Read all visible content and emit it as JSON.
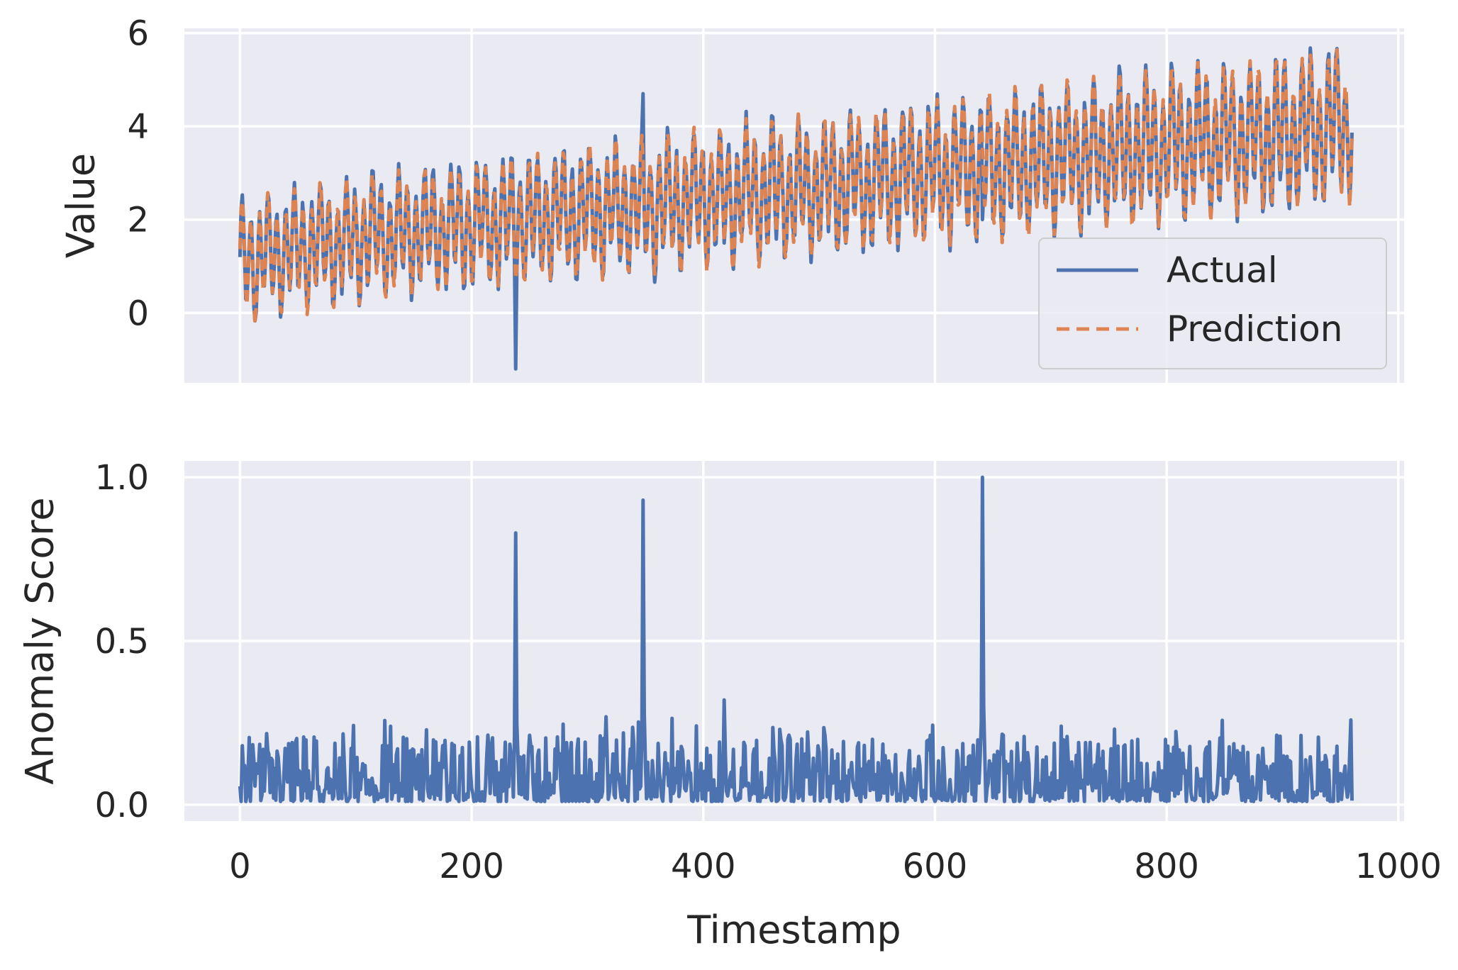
{
  "colors": {
    "panel_background": "#eaeaf2",
    "grid": "#ffffff",
    "actual": "#4c72b0",
    "prediction": "#dd8452",
    "text": "#262626"
  },
  "chart_data": [
    {
      "type": "line",
      "panel": "top",
      "title": "",
      "xlabel": "",
      "ylabel": "Value",
      "xlim": [
        -48,
        1005
      ],
      "ylim": [
        -1.5,
        6.1
      ],
      "xticks": [
        0,
        200,
        400,
        600,
        800,
        1000
      ],
      "xtick_labels_shown": false,
      "yticks": [
        0,
        2,
        4,
        6
      ],
      "ytick_labels": [
        "0",
        "2",
        "4",
        "6"
      ],
      "grid": true,
      "legend": {
        "placement": "lower right",
        "entries": [
          "Actual",
          "Prediction"
        ]
      },
      "n_points": 961,
      "x_range": [
        0,
        960
      ],
      "series": [
        {
          "name": "Actual",
          "style": "solid",
          "description_points": {
            "trend_start": 1.3,
            "trend_end": 4.1,
            "amplitude_approx": 1.0,
            "anomalies": [
              {
                "x": 238,
                "y": -1.2
              },
              {
                "x": 348,
                "y": 4.7
              },
              {
                "x": 641,
                "y": 2.0
              }
            ]
          }
        },
        {
          "name": "Prediction",
          "style": "dashed",
          "description_points": {
            "trend_start": 1.3,
            "trend_end": 4.1,
            "amplitude_approx": 1.0
          }
        }
      ]
    },
    {
      "type": "line",
      "panel": "bottom",
      "title": "",
      "xlabel": "Timestamp",
      "ylabel": "Anomaly Score",
      "xlim": [
        -48,
        1005
      ],
      "ylim": [
        -0.05,
        1.05
      ],
      "xticks": [
        0,
        200,
        400,
        600,
        800,
        1000
      ],
      "xtick_labels": [
        "0",
        "200",
        "400",
        "600",
        "800",
        "1000"
      ],
      "yticks": [
        0.0,
        0.5,
        1.0
      ],
      "ytick_labels": [
        "0.0",
        "0.5",
        "1.0"
      ],
      "grid": true,
      "n_points": 961,
      "x_range": [
        0,
        960
      ],
      "series": [
        {
          "name": "Anomaly Score",
          "style": "solid",
          "baseline_max": 0.27,
          "spikes": [
            {
              "x": 238,
              "y": 0.83
            },
            {
              "x": 348,
              "y": 0.93
            },
            {
              "x": 641,
              "y": 1.0
            },
            {
              "x": 418,
              "y": 0.32
            }
          ]
        }
      ]
    }
  ]
}
